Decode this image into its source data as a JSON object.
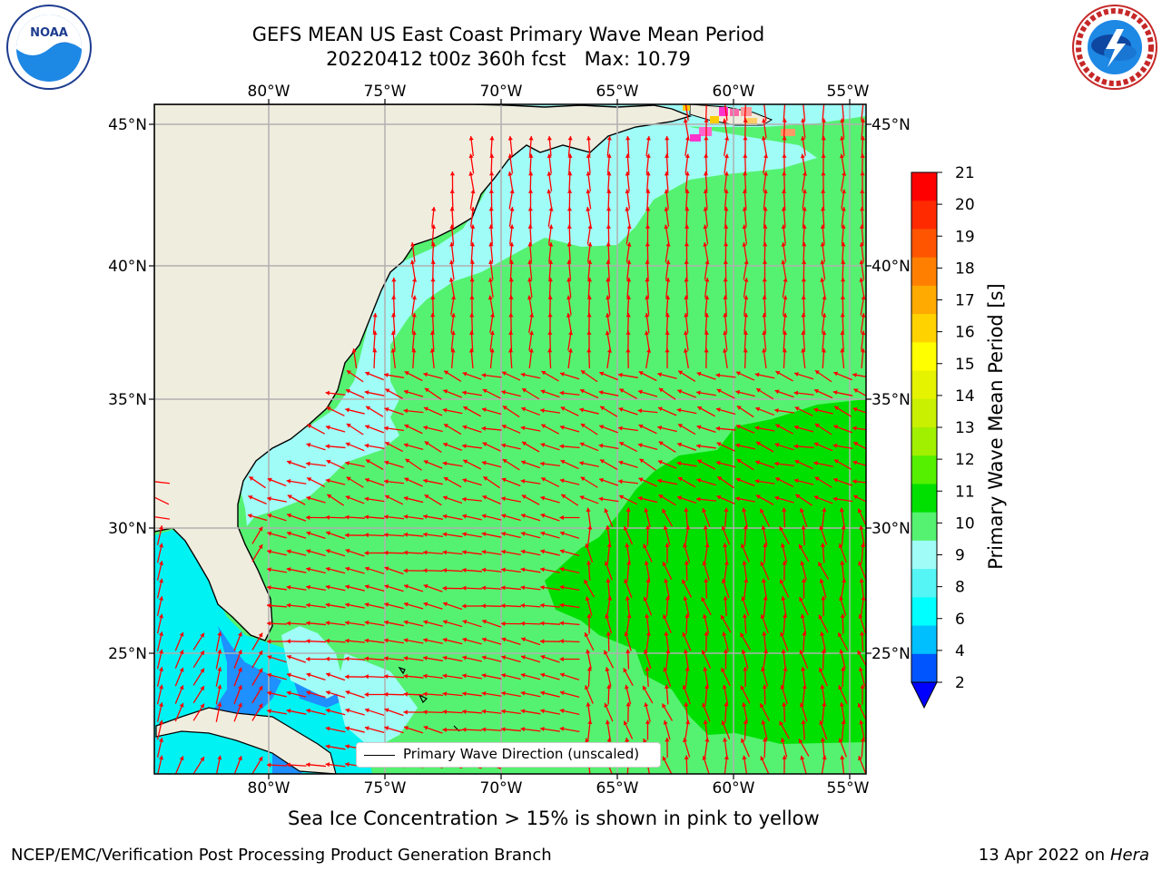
{
  "header": {
    "title_line1": "GEFS MEAN US East Coast Primary Wave Mean Period",
    "title_line2": "20220412 t00z 360h fcst   Max: 10.79"
  },
  "logos": {
    "left": {
      "name": "noaa-logo",
      "text": "NOAA",
      "ring_text": "NATIONAL OCEANIC AND ATMOSPHERIC ADMINISTRATION · U.S. DEPARTMENT OF COMMERCE"
    },
    "right": {
      "name": "nws-logo",
      "ring_text": "NATIONAL WEATHER SERVICE"
    }
  },
  "map": {
    "lon_labels": [
      "80°W",
      "75°W",
      "70°W",
      "65°W",
      "60°W",
      "55°W"
    ],
    "lat_labels": [
      "45°N",
      "40°N",
      "35°N",
      "30°N",
      "25°N"
    ],
    "legend_label": "Primary Wave Direction (unscaled)",
    "colors": {
      "land": "#efedde",
      "ocean_period_9_10": "#55f271",
      "ocean_period_10_11": "#00e000",
      "ocean_period_8_9": "#9ffcf7",
      "ocean_period_6_8": "#00f2f2",
      "ocean_period_4_6": "#00bfff",
      "arrows": "#ff0000",
      "grid": "#b0b0b0"
    }
  },
  "colorbar": {
    "label": "Primary Wave Mean Period [s]",
    "ticks": [
      "21",
      "20",
      "19",
      "18",
      "17",
      "16",
      "15",
      "14",
      "13",
      "12",
      "11",
      "10",
      "9",
      "8",
      "6",
      "4",
      "2"
    ],
    "colors": [
      "#ff0000",
      "#ff2a00",
      "#ff5500",
      "#ff8000",
      "#ffaa00",
      "#ffd200",
      "#ffff00",
      "#e5f200",
      "#c8f000",
      "#a0f000",
      "#55f000",
      "#00e000",
      "#55f271",
      "#9ffcf7",
      "#55f5f5",
      "#00ffff",
      "#00bfff",
      "#0055ff"
    ],
    "under_color": "#0000ff"
  },
  "footer": {
    "note": "Sea Ice Concentration > 15% is shown in pink to yellow",
    "left": "NCEP/EMC/Verification Post Processing Product Generation Branch",
    "date": "13 Apr 2022 on ",
    "machine": "Hera"
  }
}
